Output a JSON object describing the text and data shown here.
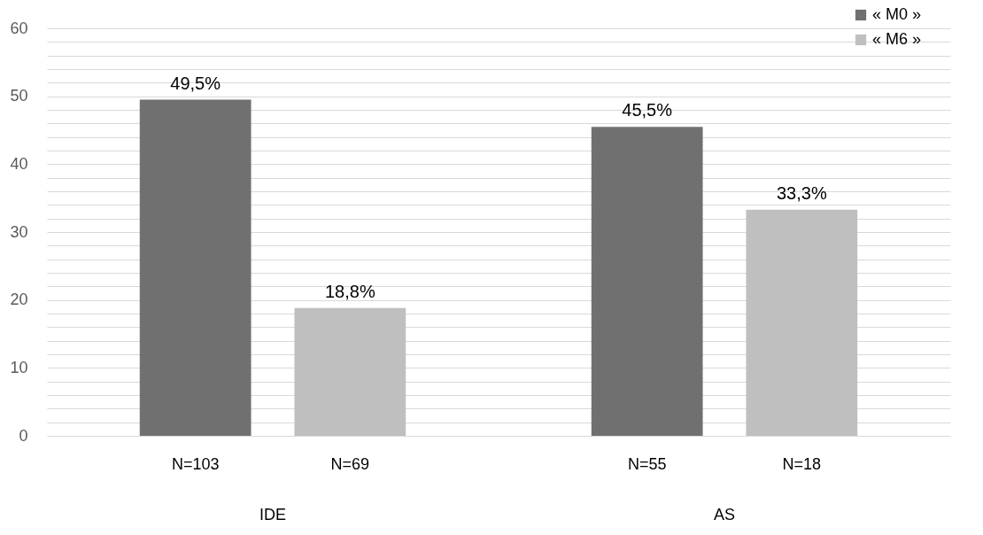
{
  "chart_data": {
    "type": "bar",
    "categories": [
      "IDE",
      "AS"
    ],
    "series": [
      {
        "name": "« M0 »",
        "color": "#707070",
        "values": [
          49.5,
          45.5
        ],
        "value_labels": [
          "49,5%",
          "45,5%"
        ]
      },
      {
        "name": "« M6 »",
        "color": "#bfbfbf",
        "values": [
          18.8,
          33.3
        ],
        "value_labels": [
          "18,8%",
          "33,3%"
        ]
      }
    ],
    "annotations": [
      "N=103",
      "N=69",
      "N=55",
      "N=18"
    ],
    "ylim": [
      0,
      60
    ],
    "yticks": [
      0,
      {
        "value": 2,
        "label": null
      },
      {
        "value": 4,
        "label": null
      },
      {
        "value": 6,
        "label": null
      },
      {
        "value": 8,
        "label": null
      },
      10,
      {
        "value": 12,
        "label": null
      },
      {
        "value": 14,
        "label": null
      },
      {
        "value": 16,
        "label": null
      },
      {
        "value": 18,
        "label": null
      },
      20,
      {
        "value": 22,
        "label": null
      },
      {
        "value": 24,
        "label": null
      },
      {
        "value": 26,
        "label": null
      },
      {
        "value": 28,
        "label": null
      },
      30,
      {
        "value": 32,
        "label": null
      },
      {
        "value": 34,
        "label": null
      },
      {
        "value": 36,
        "label": null
      },
      {
        "value": 38,
        "label": null
      },
      40,
      {
        "value": 42,
        "label": null
      },
      {
        "value": 44,
        "label": null
      },
      {
        "value": 46,
        "label": null
      },
      {
        "value": 48,
        "label": null
      },
      50,
      {
        "value": 52,
        "label": null
      },
      {
        "value": 54,
        "label": null
      },
      {
        "value": 56,
        "label": null
      },
      {
        "value": 58,
        "label": null
      },
      60
    ],
    "grid": true,
    "legend": "top right"
  }
}
